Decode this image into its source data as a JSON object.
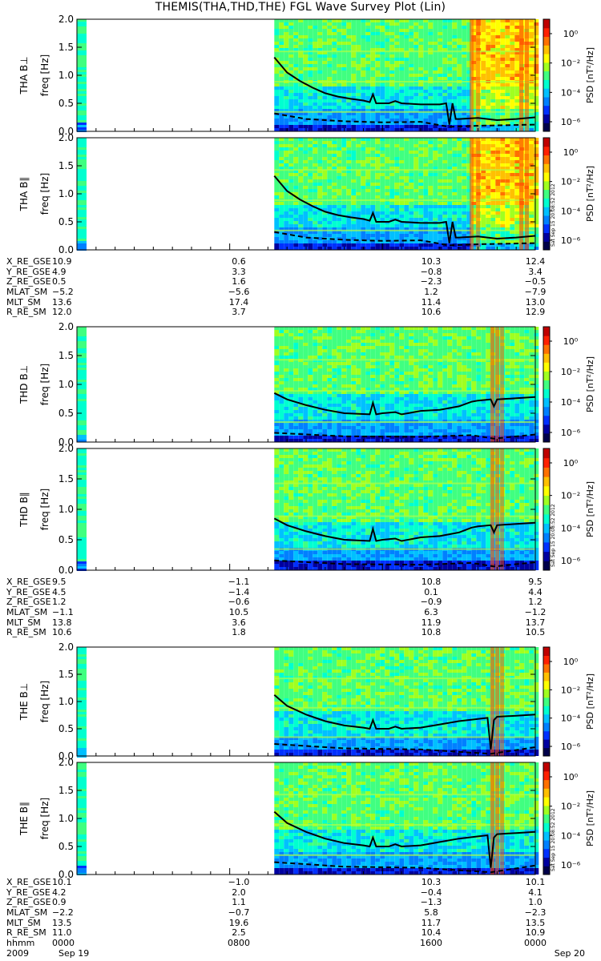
{
  "title": "THEMIS(THA,THD,THE) FGL Wave Survey Plot (Lin)",
  "colorbar": {
    "label": "PSD [nT²/Hz]",
    "ticks": [
      "10⁰",
      "10⁻²",
      "10⁻⁴",
      "10⁻⁶"
    ],
    "stamp": "Sat Sep 15 20:08:52 2012"
  },
  "chart_data": [
    {
      "type": "heatmap",
      "probe": "THA",
      "component": "THA B⊥",
      "ylabel": "freq [Hz]",
      "ylim": [
        0,
        2.0
      ],
      "yticks": [
        "2.0",
        "1.5",
        "1.0",
        "0.5",
        "0.0"
      ],
      "data_start_hhmm": "1020",
      "line_solid": [
        [
          1020,
          1.32
        ],
        [
          1100,
          1.05
        ],
        [
          1140,
          0.9
        ],
        [
          1220,
          0.78
        ],
        [
          1300,
          0.68
        ],
        [
          1340,
          0.62
        ],
        [
          1420,
          0.58
        ],
        [
          1500,
          0.55
        ],
        [
          1520,
          0.52
        ],
        [
          1530,
          0.66
        ],
        [
          1540,
          0.5
        ],
        [
          1620,
          0.5
        ],
        [
          1640,
          0.54
        ],
        [
          1700,
          0.5
        ],
        [
          1800,
          0.48
        ],
        [
          1900,
          0.48
        ],
        [
          1920,
          0.5
        ],
        [
          1930,
          0.12
        ],
        [
          1940,
          0.5
        ],
        [
          1950,
          0.22
        ],
        [
          2000,
          0.22
        ],
        [
          2100,
          0.24
        ],
        [
          2200,
          0.2
        ],
        [
          2300,
          0.22
        ],
        [
          2359,
          0.25
        ]
      ],
      "line_dashed": [
        [
          1020,
          0.32
        ],
        [
          1200,
          0.22
        ],
        [
          1400,
          0.18
        ],
        [
          1600,
          0.16
        ],
        [
          1800,
          0.17
        ],
        [
          1930,
          0.08
        ],
        [
          2100,
          0.1
        ],
        [
          2359,
          0.12
        ]
      ]
    },
    {
      "type": "heatmap",
      "probe": "THA",
      "component": "THA B∥",
      "ylabel": "freq [Hz]",
      "ylim": [
        0,
        2.0
      ],
      "yticks": [
        "2.0",
        "1.5",
        "1.0",
        "0.5",
        "0.0"
      ],
      "data_start_hhmm": "1020",
      "line_solid": [
        [
          1020,
          1.32
        ],
        [
          1100,
          1.05
        ],
        [
          1140,
          0.9
        ],
        [
          1220,
          0.78
        ],
        [
          1300,
          0.68
        ],
        [
          1340,
          0.62
        ],
        [
          1420,
          0.58
        ],
        [
          1500,
          0.55
        ],
        [
          1520,
          0.52
        ],
        [
          1530,
          0.66
        ],
        [
          1540,
          0.5
        ],
        [
          1620,
          0.5
        ],
        [
          1640,
          0.54
        ],
        [
          1700,
          0.5
        ],
        [
          1800,
          0.48
        ],
        [
          1900,
          0.48
        ],
        [
          1920,
          0.5
        ],
        [
          1930,
          0.12
        ],
        [
          1940,
          0.5
        ],
        [
          1950,
          0.22
        ],
        [
          2000,
          0.22
        ],
        [
          2100,
          0.24
        ],
        [
          2200,
          0.2
        ],
        [
          2300,
          0.22
        ],
        [
          2359,
          0.25
        ]
      ],
      "line_dashed": [
        [
          1020,
          0.32
        ],
        [
          1200,
          0.22
        ],
        [
          1400,
          0.18
        ],
        [
          1600,
          0.16
        ],
        [
          1800,
          0.17
        ],
        [
          1930,
          0.08
        ],
        [
          2100,
          0.1
        ],
        [
          2359,
          0.12
        ]
      ]
    },
    {
      "type": "heatmap",
      "probe": "THD",
      "component": "THD B⊥",
      "ylabel": "freq [Hz]",
      "ylim": [
        0,
        2.0
      ],
      "yticks": [
        "2.0",
        "1.5",
        "1.0",
        "0.5",
        "0.0"
      ],
      "data_start_hhmm": "1020",
      "line_solid": [
        [
          1020,
          0.85
        ],
        [
          1100,
          0.74
        ],
        [
          1200,
          0.64
        ],
        [
          1300,
          0.56
        ],
        [
          1400,
          0.5
        ],
        [
          1520,
          0.48
        ],
        [
          1530,
          0.68
        ],
        [
          1540,
          0.48
        ],
        [
          1600,
          0.5
        ],
        [
          1640,
          0.52
        ],
        [
          1700,
          0.48
        ],
        [
          1800,
          0.54
        ],
        [
          1900,
          0.56
        ],
        [
          2000,
          0.62
        ],
        [
          2040,
          0.7
        ],
        [
          2100,
          0.72
        ],
        [
          2140,
          0.74
        ],
        [
          2150,
          0.62
        ],
        [
          2200,
          0.74
        ],
        [
          2300,
          0.76
        ],
        [
          2359,
          0.78
        ]
      ],
      "line_dashed": [
        [
          1020,
          0.16
        ],
        [
          1400,
          0.1
        ],
        [
          1800,
          0.09
        ],
        [
          2040,
          0.12
        ],
        [
          2150,
          0.06
        ],
        [
          2359,
          0.13
        ]
      ]
    },
    {
      "type": "heatmap",
      "probe": "THD",
      "component": "THD B∥",
      "ylabel": "freq [Hz]",
      "ylim": [
        0,
        2.0
      ],
      "yticks": [
        "2.0",
        "1.5",
        "1.0",
        "0.5",
        "0.0"
      ],
      "data_start_hhmm": "1020",
      "line_solid": [
        [
          1020,
          0.85
        ],
        [
          1100,
          0.74
        ],
        [
          1200,
          0.64
        ],
        [
          1300,
          0.56
        ],
        [
          1400,
          0.5
        ],
        [
          1520,
          0.48
        ],
        [
          1530,
          0.68
        ],
        [
          1540,
          0.48
        ],
        [
          1600,
          0.5
        ],
        [
          1640,
          0.52
        ],
        [
          1700,
          0.48
        ],
        [
          1800,
          0.54
        ],
        [
          1900,
          0.56
        ],
        [
          2000,
          0.62
        ],
        [
          2040,
          0.7
        ],
        [
          2100,
          0.72
        ],
        [
          2140,
          0.74
        ],
        [
          2150,
          0.62
        ],
        [
          2200,
          0.74
        ],
        [
          2300,
          0.76
        ],
        [
          2359,
          0.78
        ]
      ],
      "line_dashed": [
        [
          1020,
          0.16
        ],
        [
          1400,
          0.1
        ],
        [
          1800,
          0.09
        ],
        [
          2040,
          0.12
        ],
        [
          2150,
          0.06
        ],
        [
          2359,
          0.13
        ]
      ]
    },
    {
      "type": "heatmap",
      "probe": "THE",
      "component": "THE B⊥",
      "ylabel": "freq [Hz]",
      "ylim": [
        0,
        2.0
      ],
      "yticks": [
        "2.0",
        "1.5",
        "1.0",
        "0.5",
        "0.0"
      ],
      "data_start_hhmm": "1020",
      "line_solid": [
        [
          1020,
          1.12
        ],
        [
          1100,
          0.92
        ],
        [
          1200,
          0.76
        ],
        [
          1300,
          0.64
        ],
        [
          1400,
          0.56
        ],
        [
          1500,
          0.52
        ],
        [
          1520,
          0.5
        ],
        [
          1530,
          0.66
        ],
        [
          1540,
          0.5
        ],
        [
          1620,
          0.5
        ],
        [
          1640,
          0.54
        ],
        [
          1700,
          0.5
        ],
        [
          1800,
          0.52
        ],
        [
          1900,
          0.58
        ],
        [
          2000,
          0.64
        ],
        [
          2100,
          0.68
        ],
        [
          2130,
          0.7
        ],
        [
          2140,
          0.12
        ],
        [
          2150,
          0.66
        ],
        [
          2200,
          0.72
        ],
        [
          2300,
          0.74
        ],
        [
          2359,
          0.76
        ]
      ],
      "line_dashed": [
        [
          1020,
          0.22
        ],
        [
          1400,
          0.14
        ],
        [
          1800,
          0.12
        ],
        [
          2140,
          0.04
        ],
        [
          2359,
          0.16
        ]
      ]
    },
    {
      "type": "heatmap",
      "probe": "THE",
      "component": "THE B∥",
      "ylabel": "freq [Hz]",
      "ylim": [
        0,
        2.0
      ],
      "yticks": [
        "2.0",
        "1.5",
        "1.0",
        "0.5",
        "0.0"
      ],
      "data_start_hhmm": "1020",
      "line_solid": [
        [
          1020,
          1.12
        ],
        [
          1100,
          0.92
        ],
        [
          1200,
          0.76
        ],
        [
          1300,
          0.64
        ],
        [
          1400,
          0.56
        ],
        [
          1500,
          0.52
        ],
        [
          1520,
          0.5
        ],
        [
          1530,
          0.66
        ],
        [
          1540,
          0.5
        ],
        [
          1620,
          0.5
        ],
        [
          1640,
          0.54
        ],
        [
          1700,
          0.5
        ],
        [
          1800,
          0.52
        ],
        [
          1900,
          0.58
        ],
        [
          2000,
          0.64
        ],
        [
          2100,
          0.68
        ],
        [
          2130,
          0.7
        ],
        [
          2140,
          0.12
        ],
        [
          2150,
          0.66
        ],
        [
          2200,
          0.72
        ],
        [
          2300,
          0.74
        ],
        [
          2359,
          0.76
        ]
      ],
      "line_dashed": [
        [
          1020,
          0.22
        ],
        [
          1400,
          0.14
        ],
        [
          1800,
          0.12
        ],
        [
          2140,
          0.04
        ],
        [
          2359,
          0.16
        ]
      ]
    }
  ],
  "ephemeris": [
    {
      "probe": "THA",
      "rows": [
        {
          "label": "X_RE_GSE",
          "values": [
            "10.9",
            "0.6",
            "10.3",
            "12.4"
          ]
        },
        {
          "label": "Y_RE_GSE",
          "values": [
            "4.9",
            "3.3",
            "−0.8",
            "3.4"
          ]
        },
        {
          "label": "Z_RE_GSE",
          "values": [
            "0.5",
            "1.6",
            "−2.3",
            "−0.5"
          ]
        },
        {
          "label": "MLAT_SM",
          "values": [
            "−5.2",
            "−5.6",
            "1.2",
            "−7.9"
          ]
        },
        {
          "label": "MLT_SM",
          "values": [
            "13.6",
            "17.4",
            "11.4",
            "13.0"
          ]
        },
        {
          "label": "R_RE_SM",
          "values": [
            "12.0",
            "3.7",
            "10.6",
            "12.9"
          ]
        }
      ]
    },
    {
      "probe": "THD",
      "rows": [
        {
          "label": "X_RE_GSE",
          "values": [
            "9.5",
            "−1.1",
            "10.8",
            "9.5"
          ]
        },
        {
          "label": "Y_RE_GSE",
          "values": [
            "4.5",
            "−1.4",
            "0.1",
            "4.4"
          ]
        },
        {
          "label": "Z_RE_GSE",
          "values": [
            "1.2",
            "−0.6",
            "−0.9",
            "1.2"
          ]
        },
        {
          "label": "MLAT_SM",
          "values": [
            "−1.1",
            "10.5",
            "6.3",
            "−1.2"
          ]
        },
        {
          "label": "MLT_SM",
          "values": [
            "13.8",
            "3.6",
            "11.9",
            "13.7"
          ]
        },
        {
          "label": "R_RE_SM",
          "values": [
            "10.6",
            "1.8",
            "10.8",
            "10.5"
          ]
        }
      ]
    },
    {
      "probe": "THE",
      "rows": [
        {
          "label": "X_RE_GSE",
          "values": [
            "10.1",
            "−1.0",
            "10.3",
            "10.1"
          ]
        },
        {
          "label": "Y_RE_GSE",
          "values": [
            "4.2",
            "2.0",
            "−0.4",
            "4.1"
          ]
        },
        {
          "label": "Z_RE_GSE",
          "values": [
            "0.9",
            "1.1",
            "−1.3",
            "1.0"
          ]
        },
        {
          "label": "MLAT_SM",
          "values": [
            "−2.2",
            "−0.7",
            "5.8",
            "−2.3"
          ]
        },
        {
          "label": "MLT_SM",
          "values": [
            "13.5",
            "19.6",
            "11.7",
            "13.5"
          ]
        },
        {
          "label": "R_RE_SM",
          "values": [
            "11.0",
            "2.5",
            "10.4",
            "10.9"
          ]
        },
        {
          "label": "hhmm",
          "values": [
            "0000",
            "0800",
            "1600",
            "0000"
          ]
        }
      ]
    }
  ],
  "footer": {
    "year": "2009",
    "start_date": "Sep 19",
    "end_date": "Sep 20"
  }
}
